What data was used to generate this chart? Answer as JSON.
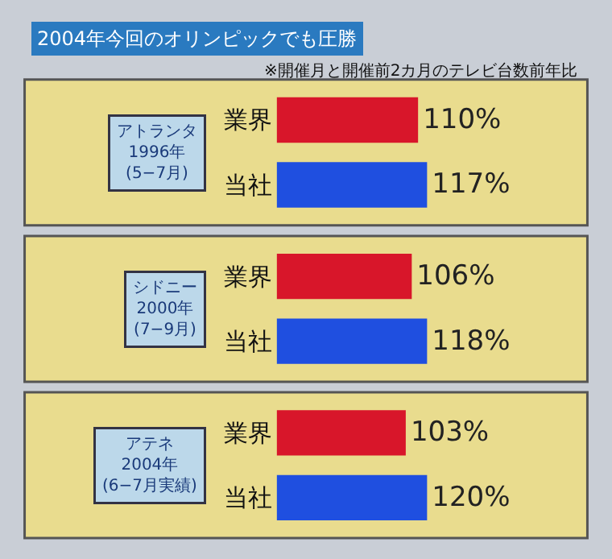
{
  "chart_data": [
    {
      "type": "bar",
      "orientation": "horizontal",
      "title": "アトランタ\n1996年\n(5−7月)",
      "categories": [
        "業界",
        "当社"
      ],
      "values": [
        110,
        117
      ],
      "colors": [
        "#d8162a",
        "#1f4fe0"
      ],
      "value_labels": [
        "110%",
        "117%"
      ],
      "tick_labels": "y",
      "grid": false,
      "annotations": [
        "2004年今回のオリンピックでも圧勝",
        "※開催月と開催前2カ月のテレビ台数前年比"
      ]
    },
    {
      "type": "bar",
      "orientation": "horizontal",
      "title": "シドニー\n2000年\n(7−9月)",
      "categories": [
        "業界",
        "当社"
      ],
      "values": [
        106,
        118
      ],
      "colors": [
        "#d8162a",
        "#1f4fe0"
      ],
      "value_labels": [
        "106%",
        "118%"
      ],
      "tick_labels": "y",
      "grid": false
    },
    {
      "type": "bar",
      "orientation": "horizontal",
      "title": "アテネ\n2004年\n(6−7月実績)",
      "categories": [
        "業界",
        "当社"
      ],
      "values": [
        103,
        120
      ],
      "colors": [
        "#d8162a",
        "#1f4fe0"
      ],
      "value_labels": [
        "103%",
        "120%"
      ],
      "tick_labels": "y",
      "grid": false
    }
  ]
}
